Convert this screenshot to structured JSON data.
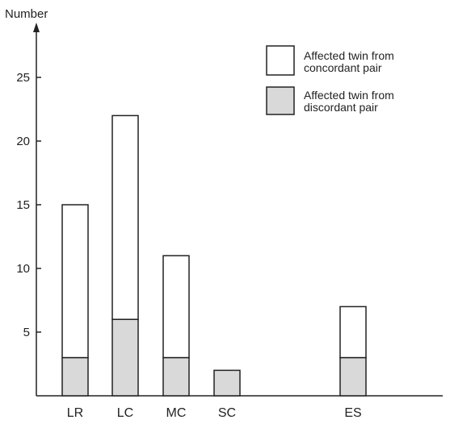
{
  "chart_data": {
    "type": "bar",
    "stacked": true,
    "ylabel": "Number",
    "ylim": [
      0,
      28
    ],
    "yticks": [
      5,
      10,
      15,
      20,
      25
    ],
    "categories": [
      "LR",
      "LC",
      "MC",
      "SC",
      "ES"
    ],
    "series": [
      {
        "name": "Affected twin from discordant pair",
        "values": [
          3,
          6,
          3,
          2,
          3
        ],
        "color": "#d9d9d9"
      },
      {
        "name": "Affected twin from concordant pair",
        "values": [
          12,
          16,
          8,
          0,
          4
        ],
        "color": "#ffffff"
      }
    ],
    "legend": {
      "placement": "top-right",
      "items": [
        {
          "line1": "Affected twin from",
          "line2": "concordant pair",
          "color": "#ffffff"
        },
        {
          "line1": "Affected twin from",
          "line2": "discordant pair",
          "color": "#d9d9d9"
        }
      ]
    },
    "grid": false,
    "outline_color": "#222222"
  }
}
